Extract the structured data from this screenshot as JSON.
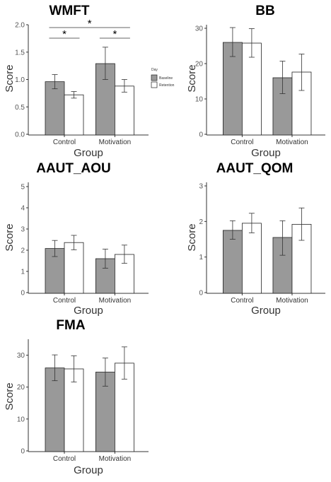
{
  "colors": {
    "baseline": "#999999",
    "retention": "#ffffff",
    "stroke": "#222222",
    "axis": "#333333",
    "error": "#333333"
  },
  "legend": {
    "title": "Day",
    "items": [
      "Baseline",
      "Retention"
    ]
  },
  "chart_data": [
    {
      "type": "bar",
      "title": "WMFT",
      "xlabel": "Group",
      "ylabel": "Score",
      "categories": [
        "Control",
        "Motivation"
      ],
      "ylim": [
        0,
        2.0
      ],
      "yticks": [
        "0.0",
        "0.5",
        "1.0",
        "1.5",
        "2.0"
      ],
      "series": [
        {
          "name": "Baseline",
          "values": [
            0.96,
            1.29
          ],
          "err_low": [
            0.83,
            1.0
          ],
          "err_high": [
            1.09,
            1.59
          ]
        },
        {
          "name": "Retention",
          "values": [
            0.72,
            0.88
          ],
          "err_low": [
            0.66,
            0.77
          ],
          "err_high": [
            0.78,
            1.0
          ]
        }
      ],
      "significance": [
        {
          "from": [
            0,
            0
          ],
          "to": [
            0,
            1
          ],
          "label": "*"
        },
        {
          "from": [
            1,
            0
          ],
          "to": [
            1,
            1
          ],
          "label": "*"
        },
        {
          "from": [
            0,
            0
          ],
          "to": [
            1,
            1
          ],
          "label": "*"
        }
      ]
    },
    {
      "type": "bar",
      "title": "BB",
      "xlabel": "Group",
      "ylabel": "Score",
      "categories": [
        "Control",
        "Motivation"
      ],
      "ylim": [
        0,
        31
      ],
      "yticks": [
        "0",
        "10",
        "20",
        "30"
      ],
      "series": [
        {
          "name": "Baseline",
          "values": [
            26,
            16
          ],
          "err_low": [
            22,
            11.5
          ],
          "err_high": [
            30.2,
            20.7
          ]
        },
        {
          "name": "Retention",
          "values": [
            25.8,
            17.6
          ],
          "err_low": [
            21.8,
            12.4
          ],
          "err_high": [
            29.9,
            22.7
          ]
        }
      ]
    },
    {
      "type": "bar",
      "title": "AAUT_AOU",
      "xlabel": "Group",
      "ylabel": "Score",
      "categories": [
        "Control",
        "Motivation"
      ],
      "ylim": [
        0,
        5.2
      ],
      "yticks": [
        "0",
        "1",
        "2",
        "3",
        "4",
        "5"
      ],
      "series": [
        {
          "name": "Baseline",
          "values": [
            2.08,
            1.6
          ],
          "err_low": [
            1.7,
            1.15
          ],
          "err_high": [
            2.46,
            2.05
          ]
        },
        {
          "name": "Retention",
          "values": [
            2.36,
            1.8
          ],
          "err_low": [
            2.02,
            1.38
          ],
          "err_high": [
            2.7,
            2.24
          ]
        }
      ]
    },
    {
      "type": "bar",
      "title": "AAUT_QOM",
      "xlabel": "Group",
      "ylabel": "Score",
      "categories": [
        "Control",
        "Motivation"
      ],
      "ylim": [
        0,
        3.1
      ],
      "yticks": [
        "0",
        "1",
        "2",
        "3"
      ],
      "series": [
        {
          "name": "Baseline",
          "values": [
            1.75,
            1.55
          ],
          "err_low": [
            1.5,
            1.05
          ],
          "err_high": [
            2.02,
            2.02
          ]
        },
        {
          "name": "Retention",
          "values": [
            1.95,
            1.92
          ],
          "err_low": [
            1.68,
            1.47
          ],
          "err_high": [
            2.23,
            2.38
          ]
        }
      ]
    },
    {
      "type": "bar",
      "title": "FMA",
      "xlabel": "Group",
      "ylabel": "Score",
      "categories": [
        "Control",
        "Motivation"
      ],
      "ylim": [
        0,
        35
      ],
      "yticks": [
        "0",
        "10",
        "20",
        "30"
      ],
      "series": [
        {
          "name": "Baseline",
          "values": [
            26,
            24.7
          ],
          "err_low": [
            22,
            20.3
          ],
          "err_high": [
            30.1,
            29.1
          ]
        },
        {
          "name": "Retention",
          "values": [
            25.7,
            27.5
          ],
          "err_low": [
            21.6,
            22.5
          ],
          "err_high": [
            29.8,
            32.6
          ]
        }
      ]
    }
  ]
}
